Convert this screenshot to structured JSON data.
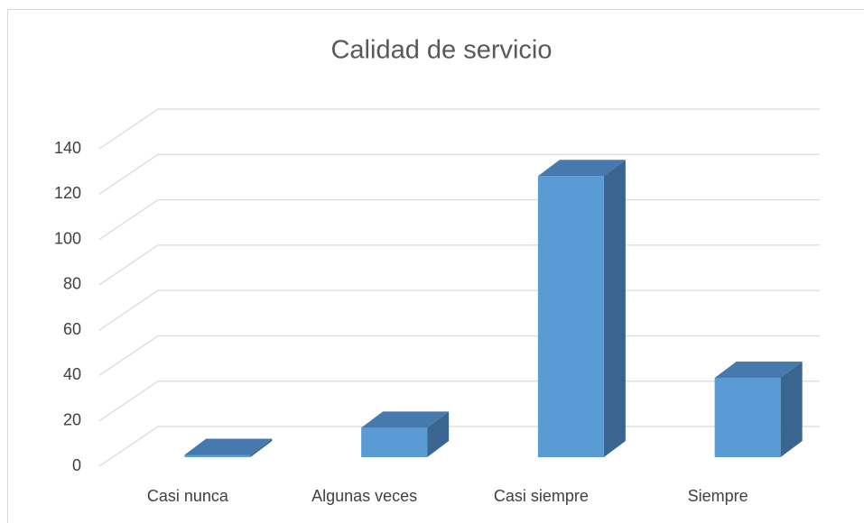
{
  "chart_data": {
    "type": "bar3d",
    "title": "Calidad de servicio",
    "categories": [
      "Casi nunca",
      "Algunas veces",
      "Casi siempre",
      "Siempre"
    ],
    "values": [
      1,
      13,
      124,
      35
    ],
    "color": "#5b9bd5",
    "ylim": [
      0,
      140
    ],
    "yticks": [
      0,
      20,
      40,
      60,
      80,
      100,
      120,
      140
    ],
    "grid": true
  }
}
